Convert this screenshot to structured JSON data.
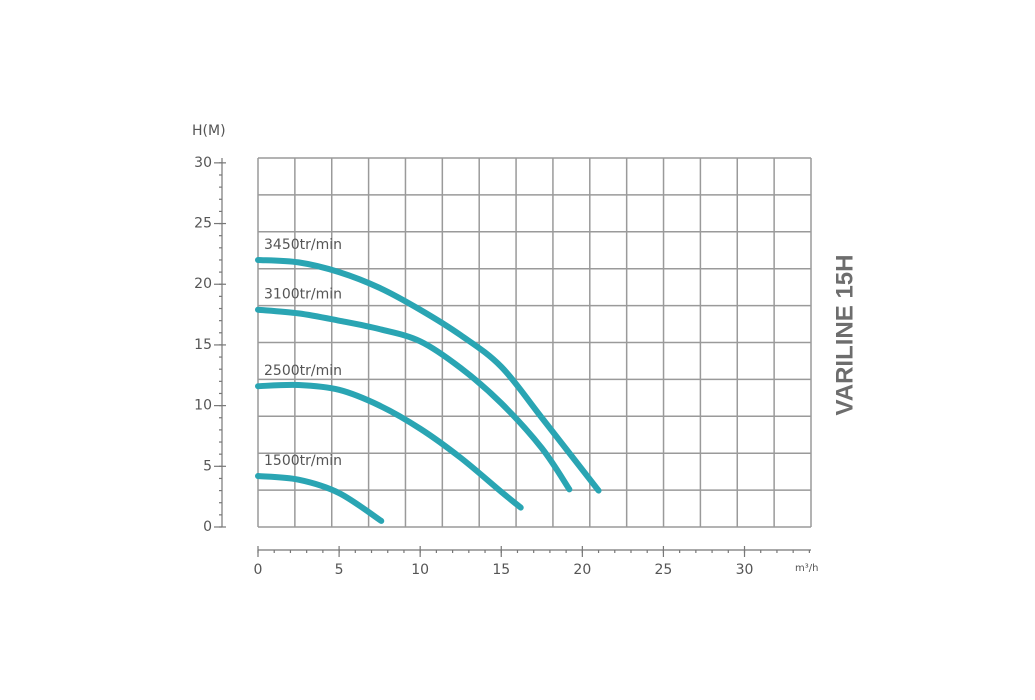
{
  "chart_data": {
    "type": "line",
    "title": "VARILINE 15H",
    "y_label": "H(M)",
    "x_label": "m³/h",
    "xlim": [
      0,
      34.1
    ],
    "ylim": [
      0,
      30.4
    ],
    "xticks": [
      0,
      5,
      10,
      15,
      20,
      25,
      30
    ],
    "yticks": [
      0,
      5,
      10,
      15,
      20,
      25,
      30
    ],
    "grid": true,
    "series": [
      {
        "name": "3450tr/min",
        "color": "#2aa5b3",
        "x": [
          0,
          2.5,
          5,
          7.5,
          10,
          12.5,
          15,
          17.5,
          21
        ],
        "values": [
          22,
          21.8,
          21,
          19.7,
          17.9,
          15.8,
          13.2,
          9,
          3
        ]
      },
      {
        "name": "3100tr/min",
        "color": "#2aa5b3",
        "x": [
          0,
          2.5,
          5,
          7.5,
          10,
          12.5,
          15,
          17.5,
          19.2
        ],
        "values": [
          17.9,
          17.6,
          17,
          16.3,
          15.3,
          13.1,
          10.2,
          6.5,
          3.1
        ]
      },
      {
        "name": "2500tr/min",
        "color": "#2aa5b3",
        "x": [
          0,
          2.5,
          5,
          7.5,
          10,
          12.5,
          15,
          16.2
        ],
        "values": [
          11.6,
          11.7,
          11.3,
          10,
          8.1,
          5.7,
          2.9,
          1.6
        ]
      },
      {
        "name": "1500tr/min",
        "color": "#2aa5b3",
        "x": [
          0,
          2.5,
          5,
          7.6
        ],
        "values": [
          4.2,
          3.9,
          2.8,
          0.5
        ]
      }
    ]
  }
}
